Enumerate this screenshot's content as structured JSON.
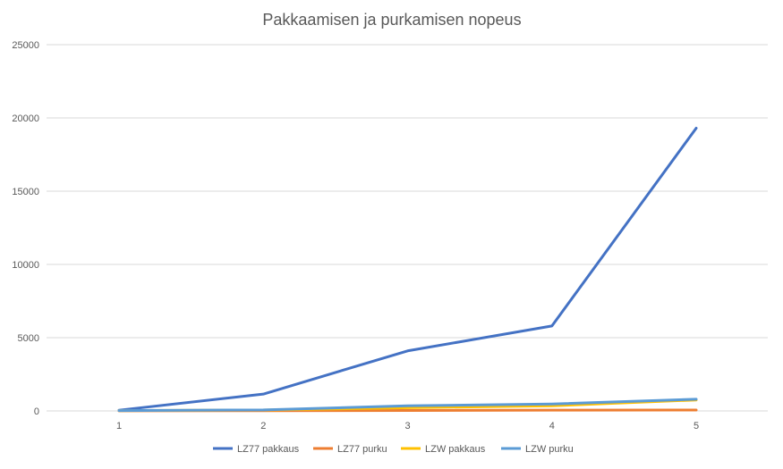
{
  "chart_data": {
    "type": "line",
    "title": "Pakkaamisen ja purkamisen nopeus",
    "xlabel": "",
    "ylabel": "",
    "categories": [
      "1",
      "2",
      "3",
      "4",
      "5"
    ],
    "ylim": [
      0,
      25000
    ],
    "yticks": [
      "0",
      "5000",
      "10000",
      "15000",
      "20000",
      "25000"
    ],
    "grid": true,
    "legend": "bottom",
    "series": [
      {
        "name": "LZ77 pakkaus",
        "color": "#4472c4",
        "values": [
          50,
          1150,
          4100,
          5800,
          19300
        ]
      },
      {
        "name": "LZ77 purku",
        "color": "#ed7d31",
        "values": [
          5,
          15,
          30,
          50,
          60
        ]
      },
      {
        "name": "LZW pakkaus",
        "color": "#ffc000",
        "values": [
          20,
          60,
          220,
          350,
          750
        ]
      },
      {
        "name": "LZW purku",
        "color": "#5b9bd5",
        "values": [
          25,
          70,
          350,
          470,
          800
        ]
      }
    ]
  }
}
